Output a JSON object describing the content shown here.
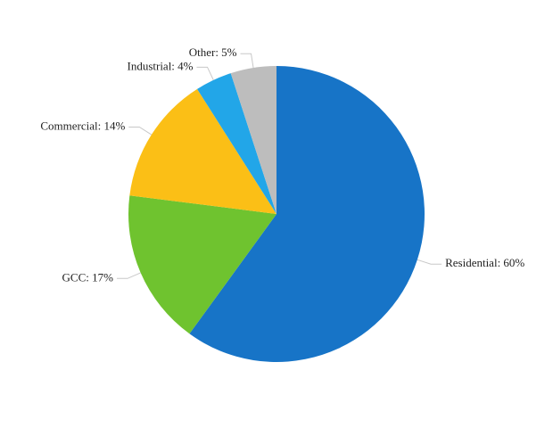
{
  "chart_data": {
    "type": "pie",
    "start_angle_deg": 0,
    "direction": "clockwise",
    "labels": [
      "Residential: 60%",
      "GCC: 17%",
      "Commercial: 14%",
      "Industrial: 4%",
      "Other: 5%"
    ],
    "slices": [
      {
        "name": "Residential",
        "value": 60,
        "color": "#1774c7"
      },
      {
        "name": "GCC",
        "value": 17,
        "color": "#6fc32f"
      },
      {
        "name": "Commercial",
        "value": 14,
        "color": "#fbbf16"
      },
      {
        "name": "Industrial",
        "value": 4,
        "color": "#22a6e8"
      },
      {
        "name": "Other",
        "value": 5,
        "color": "#bdbdbd"
      }
    ]
  }
}
